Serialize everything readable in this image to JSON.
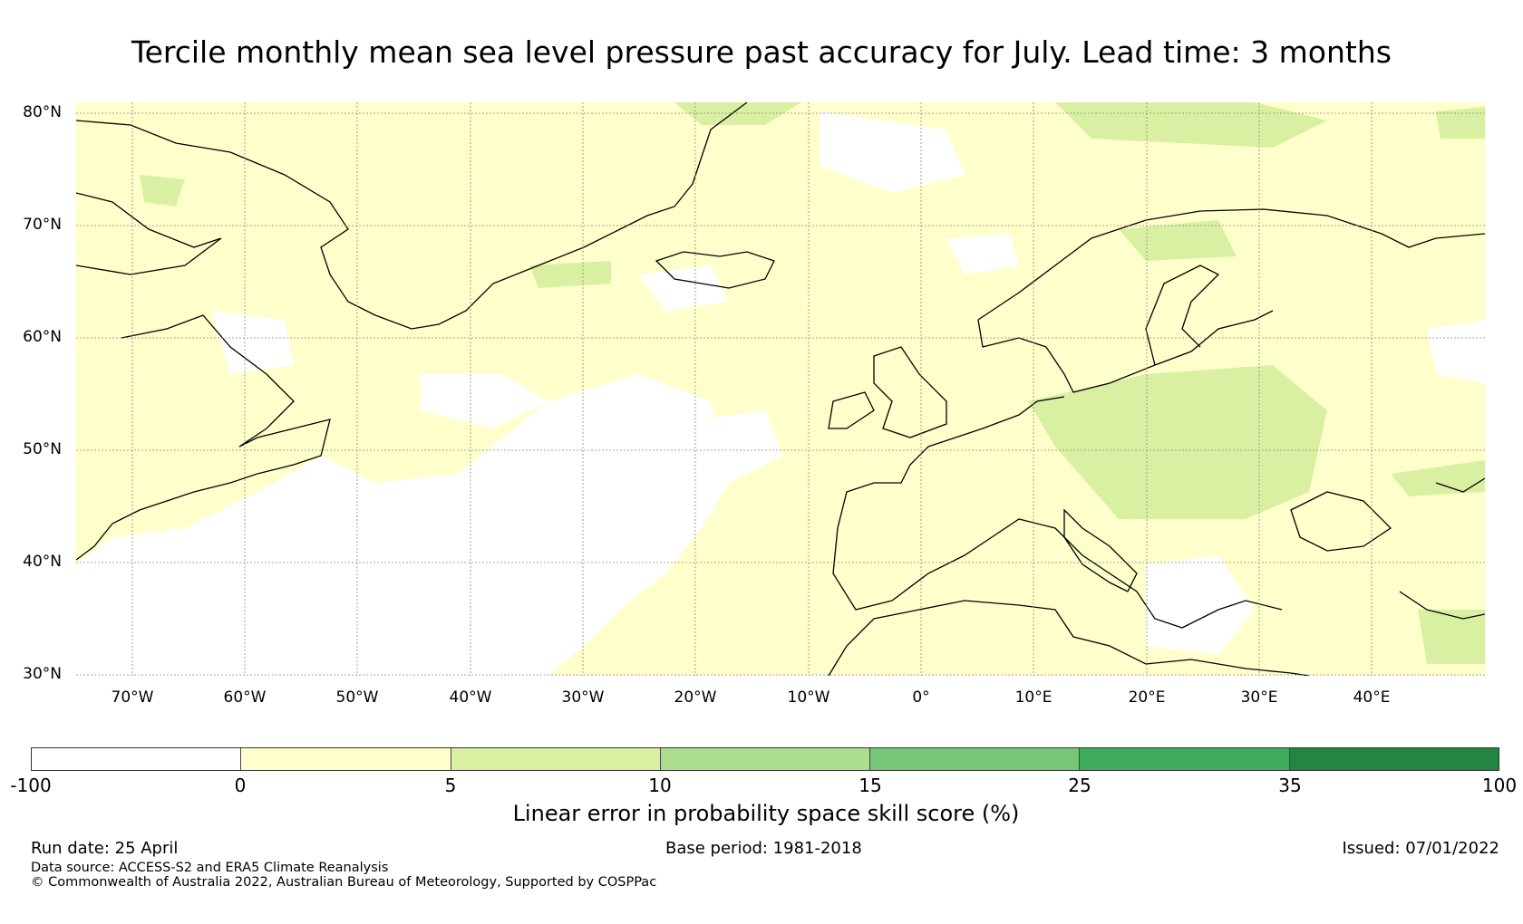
{
  "title": "Tercile monthly mean sea level pressure past accuracy for July. Lead time: 3 months",
  "map": {
    "lat_labels": [
      "80°N",
      "70°N",
      "60°N",
      "50°N",
      "40°N",
      "30°N"
    ],
    "lon_labels": [
      "70°W",
      "60°W",
      "50°W",
      "40°W",
      "30°W",
      "20°W",
      "10°W",
      "0°",
      "10°E",
      "20°E",
      "30°E",
      "40°E"
    ],
    "extent": {
      "lon_min": -75,
      "lon_max": 50,
      "lat_min": 30,
      "lat_max": 81
    },
    "colors": {
      "land_outline": "#000000",
      "gridline": "#888888"
    }
  },
  "colorbar": {
    "ticks": [
      "-100",
      "0",
      "5",
      "10",
      "15",
      "25",
      "35",
      "100"
    ],
    "colors": [
      "#ffffff",
      "#ffffcc",
      "#d9f0a3",
      "#addd8e",
      "#78c679",
      "#41ab5d",
      "#238443"
    ],
    "title": "Linear error in probability space skill score (%)"
  },
  "footer": {
    "run_date": "Run date: 25 April",
    "base_period": "Base period: 1981-2018",
    "issued": "Issued: 07/01/2022",
    "data_source": "Data source: ACCESS-S2 and ERA5 Climate Reanalysis",
    "copyright": "© Commonwealth of Australia 2022, Australian Bureau of Meteorology, Supported by COSPPac"
  }
}
